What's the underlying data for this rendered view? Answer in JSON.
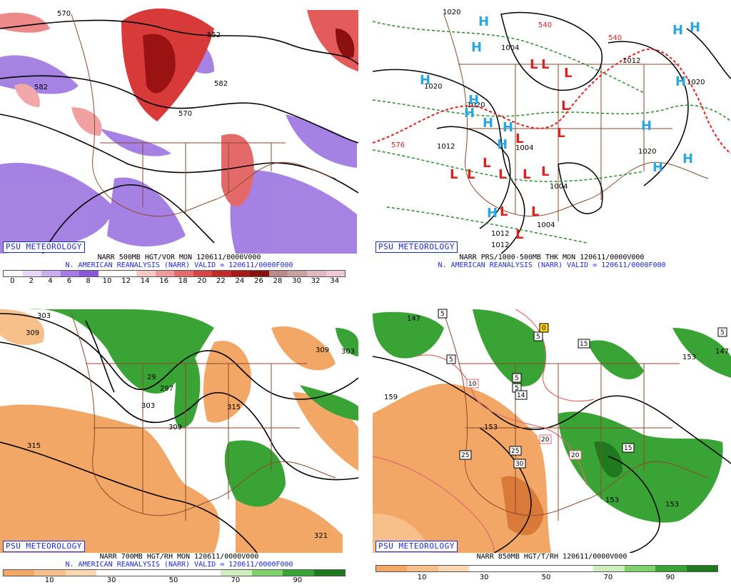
{
  "psu_label": "PSU METEOROLOGY",
  "panels": {
    "p1": {
      "caption": "NARR 500MB HGT/VOR MON 120611/0000V000",
      "subcaption": "N. AMERICAN REANALYSIS (NARR) VALID = 120611/0000F000",
      "colorbar": [
        "#f8f8f8",
        "#e6d6f8",
        "#c9aef0",
        "#a57be6",
        "#8a56dc",
        "#ffffff",
        "#ffffff",
        "#f7c6c6",
        "#f09a9a",
        "#e86b6b",
        "#d94545",
        "#c52a2a",
        "#a81a1a",
        "#8c1010",
        "#b98a8a",
        "#c7a0a0",
        "#e0b8c0",
        "#f0c8d4"
      ],
      "ticks": [
        "0",
        "2",
        "4",
        "6",
        "8",
        "10",
        "12",
        "14",
        "16",
        "18",
        "20",
        "22",
        "24",
        "26",
        "28",
        "30",
        "32",
        "34"
      ],
      "labels": [
        "570",
        "582",
        "552",
        "570",
        "582"
      ]
    },
    "p2": {
      "caption": "NARR PRS/1000-500MB THK MON 120611/0000V000",
      "subcaption": "N. AMERICAN REANALYSIS (NARR) VALID = 120611/0000F000",
      "labels": [
        "1020",
        "1020",
        "1012",
        "1012",
        "1004",
        "1004",
        "1004",
        "1012",
        "1004",
        "1020",
        "1020",
        "1020",
        "1012",
        "576",
        "540",
        "540"
      ],
      "high_letter": "H",
      "low_letter": "L"
    },
    "p3": {
      "caption": "NARR 700MB HGT/RH MON 120611/0000V000",
      "subcaption": "N. AMERICAN REANALYSIS (NARR) VALID = 120611/0000F000",
      "colorbar": [
        "#f2a766",
        "#f7c08a",
        "#fad7b2",
        "#ffffff",
        "#ffffff",
        "#ffffff",
        "#ffffff",
        "#cfeec0",
        "#7fd26a",
        "#3aa335",
        "#1f7a1f"
      ],
      "ticks": [
        "10",
        "30",
        "50",
        "70",
        "90"
      ],
      "labels": [
        "303",
        "309",
        "315",
        "297",
        "303",
        "309",
        "315",
        "321",
        "303",
        "309",
        "29"
      ]
    },
    "p4": {
      "caption": "NARR 850MB HGT/T/RH 120611/0000V000",
      "colorbar": [
        "#f2a766",
        "#f7c08a",
        "#fad7b2",
        "#ffffff",
        "#ffffff",
        "#ffffff",
        "#ffffff",
        "#cfeec0",
        "#7fd26a",
        "#3aa335",
        "#1f7a1f"
      ],
      "ticks": [
        "10",
        "30",
        "50",
        "70",
        "90"
      ],
      "labels": [
        "147",
        "159",
        "153",
        "147",
        "153",
        "153",
        "153"
      ],
      "boxed_labels": [
        "5",
        "5",
        "5",
        "0",
        "5",
        "15",
        "10",
        "5",
        "20",
        "25",
        "25",
        "30",
        "20",
        "15",
        "5",
        "14"
      ]
    }
  }
}
